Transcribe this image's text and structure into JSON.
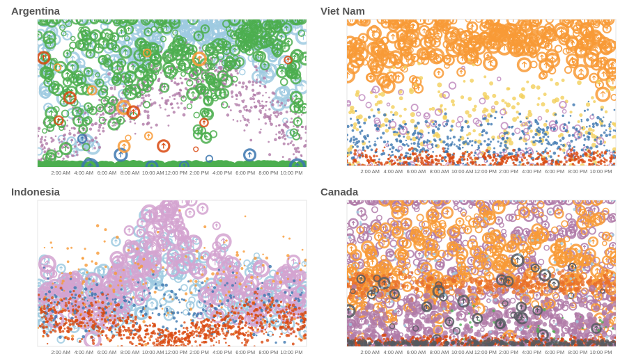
{
  "chart_data": [
    {
      "type": "scatter",
      "title": "Argentina",
      "xlim": [
        0,
        23.3
      ],
      "ylim": [
        0,
        100
      ],
      "grid": false,
      "x_ticks": [
        "2:00 AM",
        "4:00 AM",
        "6:00 AM",
        "8:00 AM",
        "10:00 AM",
        "12:00 PM",
        "2:00 PM",
        "4:00 PM",
        "6:00 PM",
        "8:00 PM",
        "10:00 PM"
      ],
      "series": [
        {
          "color": "#9ecae1",
          "marker": "ring",
          "count": 260,
          "size": 7,
          "profile": [
            [
              0,
              70,
              30
            ],
            [
              4,
              65,
              30
            ],
            [
              7,
              75,
              20
            ],
            [
              9,
              85,
              10
            ],
            [
              12,
              95,
              5
            ],
            [
              16,
              90,
              8
            ],
            [
              20,
              80,
              15
            ],
            [
              23.3,
              65,
              30
            ]
          ]
        },
        {
          "color": "#b07aa8",
          "marker": "dot",
          "count": 700,
          "size": 2,
          "profile": [
            [
              0,
              10,
              8
            ],
            [
              4,
              25,
              10
            ],
            [
              8,
              45,
              10
            ],
            [
              12,
              55,
              12
            ],
            [
              15,
              65,
              8
            ],
            [
              19,
              45,
              12
            ],
            [
              23.3,
              15,
              10
            ]
          ]
        },
        {
          "color": "#4cae4f",
          "marker": "ring",
          "count": 420,
          "size": 6,
          "profile": [
            [
              0,
              60,
              35
            ],
            [
              4,
              60,
              35
            ],
            [
              8,
              75,
              25
            ],
            [
              12,
              85,
              10
            ],
            [
              15,
              55,
              25
            ],
            [
              18,
              90,
              8
            ],
            [
              21,
              85,
              10
            ],
            [
              23.3,
              60,
              35
            ]
          ]
        },
        {
          "color": "#4cae4f",
          "marker": "band",
          "count": 160,
          "size": 6,
          "profile": [
            [
              0,
              3,
              2
            ],
            [
              23.3,
              3,
              2
            ]
          ]
        },
        {
          "color": "#3b75af",
          "marker": "ring",
          "count": 8,
          "size": 8,
          "profile": [
            [
              0,
              8,
              6
            ],
            [
              23.3,
              8,
              6
            ]
          ]
        },
        {
          "color": "#f89a36",
          "marker": "ring",
          "count": 8,
          "size": 7,
          "profile": [
            [
              0,
              40,
              25
            ],
            [
              23.3,
              40,
              25
            ]
          ]
        },
        {
          "color": "#d9480f",
          "marker": "ring",
          "count": 8,
          "size": 6,
          "profile": [
            [
              0,
              30,
              25
            ],
            [
              23.3,
              30,
              25
            ]
          ]
        }
      ]
    },
    {
      "type": "scatter",
      "title": "Viet Nam",
      "xlim": [
        0,
        23.3
      ],
      "ylim": [
        0,
        100
      ],
      "grid": false,
      "x_ticks": [
        "2:00 AM",
        "4:00 AM",
        "6:00 AM",
        "8:00 AM",
        "10:00 AM",
        "12:00 PM",
        "2:00 PM",
        "4:00 PM",
        "6:00 PM",
        "8:00 PM",
        "10:00 PM"
      ],
      "series": [
        {
          "color": "#f89a36",
          "marker": "ring",
          "count": 330,
          "size": 7,
          "profile": [
            [
              0,
              80,
              15
            ],
            [
              4,
              80,
              12
            ],
            [
              8,
              85,
              12
            ],
            [
              12,
              90,
              8
            ],
            [
              16,
              85,
              12
            ],
            [
              20,
              85,
              12
            ],
            [
              23.3,
              80,
              15
            ]
          ]
        },
        {
          "color": "#f2cf5b",
          "marker": "dot",
          "count": 250,
          "size": 3,
          "profile": [
            [
              0,
              30,
              18
            ],
            [
              23.3,
              30,
              18
            ]
          ]
        },
        {
          "color": "#c18cbf",
          "marker": "ring",
          "count": 90,
          "size": 4,
          "profile": [
            [
              0,
              22,
              18
            ],
            [
              23.3,
              22,
              18
            ]
          ]
        },
        {
          "color": "#3b75af",
          "marker": "dot",
          "count": 500,
          "size": 2,
          "profile": [
            [
              0,
              18,
              10
            ],
            [
              6,
              14,
              8
            ],
            [
              12,
              15,
              10
            ],
            [
              18,
              18,
              10
            ],
            [
              23.3,
              20,
              10
            ]
          ]
        },
        {
          "color": "#d9480f",
          "marker": "dot",
          "count": 400,
          "size": 2,
          "profile": [
            [
              0,
              4,
              3
            ],
            [
              23.3,
              4,
              3
            ]
          ]
        }
      ]
    },
    {
      "type": "scatter",
      "title": "Indonesia",
      "xlim": [
        0,
        23.3
      ],
      "ylim": [
        0,
        100
      ],
      "grid": false,
      "x_ticks": [
        "2:00 AM",
        "4:00 AM",
        "6:00 AM",
        "8:00 AM",
        "10:00 AM",
        "12:00 PM",
        "2:00 PM",
        "4:00 PM",
        "6:00 PM",
        "8:00 PM",
        "10:00 PM"
      ],
      "series": [
        {
          "color": "#9ecae1",
          "marker": "ring",
          "count": 300,
          "size": 6,
          "profile": [
            [
              0,
              35,
              12
            ],
            [
              6,
              30,
              12
            ],
            [
              9,
              50,
              20
            ],
            [
              12,
              55,
              20
            ],
            [
              15,
              40,
              15
            ],
            [
              20,
              35,
              15
            ],
            [
              23.3,
              35,
              12
            ]
          ]
        },
        {
          "color": "#d3a3d0",
          "marker": "ring",
          "count": 260,
          "size": 8,
          "profile": [
            [
              0,
              35,
              10
            ],
            [
              6,
              30,
              10
            ],
            [
              9,
              60,
              20
            ],
            [
              11.5,
              85,
              12
            ],
            [
              14,
              60,
              20
            ],
            [
              18,
              35,
              10
            ],
            [
              23.3,
              35,
              10
            ]
          ]
        },
        {
          "color": "#f89a36",
          "marker": "dot",
          "count": 200,
          "size": 2,
          "profile": [
            [
              0,
              40,
              20
            ],
            [
              23.3,
              40,
              20
            ]
          ]
        },
        {
          "color": "#3b75af",
          "marker": "dot",
          "count": 250,
          "size": 2,
          "profile": [
            [
              0,
              28,
              10
            ],
            [
              23.3,
              28,
              10
            ]
          ]
        },
        {
          "color": "#d9480f",
          "marker": "dot",
          "count": 800,
          "size": 2,
          "profile": [
            [
              0,
              18,
              8
            ],
            [
              5,
              20,
              8
            ],
            [
              9,
              10,
              6
            ],
            [
              12,
              4,
              3
            ],
            [
              15,
              12,
              6
            ],
            [
              19,
              20,
              8
            ],
            [
              23.3,
              18,
              8
            ]
          ]
        }
      ]
    },
    {
      "type": "scatter",
      "title": "Canada",
      "xlim": [
        0,
        23.3
      ],
      "ylim": [
        0,
        100
      ],
      "grid": false,
      "x_ticks": [
        "2:00 AM",
        "4:00 AM",
        "6:00 AM",
        "8:00 AM",
        "10:00 AM",
        "12:00 PM",
        "2:00 PM",
        "4:00 PM",
        "6:00 PM",
        "8:00 PM",
        "10:00 PM"
      ],
      "series": [
        {
          "color": "#b07aa8",
          "marker": "ring",
          "count": 600,
          "size": 5,
          "profile": [
            [
              0,
              55,
              40
            ],
            [
              23.3,
              55,
              40
            ]
          ]
        },
        {
          "color": "#f89a36",
          "marker": "ring",
          "count": 380,
          "size": 6,
          "profile": [
            [
              0,
              45,
              20
            ],
            [
              6,
              50,
              25
            ],
            [
              10,
              65,
              20
            ],
            [
              16,
              60,
              20
            ],
            [
              23.3,
              55,
              25
            ]
          ]
        },
        {
          "color": "#e8712a",
          "marker": "dot",
          "count": 300,
          "size": 3,
          "profile": [
            [
              0,
              42,
              4
            ],
            [
              23.3,
              42,
              4
            ]
          ]
        },
        {
          "color": "#b07aa8",
          "marker": "dot",
          "count": 500,
          "size": 4,
          "profile": [
            [
              0,
              15,
              10
            ],
            [
              23.3,
              15,
              10
            ]
          ]
        },
        {
          "color": "#555a60",
          "marker": "ring",
          "count": 40,
          "size": 6,
          "profile": [
            [
              0,
              28,
              14
            ],
            [
              23.3,
              28,
              14
            ]
          ]
        },
        {
          "color": "#9ecae1",
          "marker": "dot",
          "count": 150,
          "size": 2,
          "profile": [
            [
              0,
              50,
              40
            ],
            [
              23.3,
              50,
              40
            ]
          ]
        },
        {
          "color": "#4cae4f",
          "marker": "dot",
          "count": 40,
          "size": 2,
          "profile": [
            [
              8,
              10,
              8
            ],
            [
              23.3,
              10,
              8
            ]
          ]
        },
        {
          "color": "#d9480f",
          "marker": "dot",
          "count": 400,
          "size": 2,
          "profile": [
            [
              0,
              3,
              2
            ],
            [
              23.3,
              3,
              2
            ]
          ]
        },
        {
          "color": "#555a60",
          "marker": "dot",
          "count": 200,
          "size": 3,
          "profile": [
            [
              0,
              2,
              1
            ],
            [
              23.3,
              2,
              1
            ]
          ]
        }
      ]
    }
  ]
}
